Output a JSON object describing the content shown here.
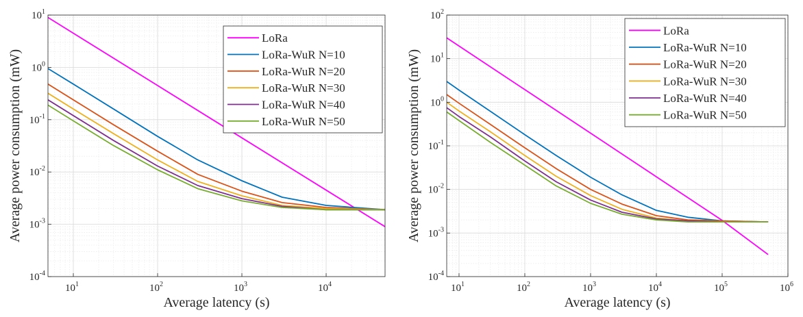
{
  "chart_data": [
    {
      "type": "line",
      "xscale": "log",
      "yscale": "log",
      "xlim": [
        5,
        50000
      ],
      "ylim": [
        0.0001,
        10
      ],
      "grid": true,
      "xlabel": "Average latency (s)",
      "ylabel": "Average power consumption (mW)",
      "legend_position": "top-right",
      "x_ticks": [
        {
          "base": "10",
          "exp": "1"
        },
        {
          "base": "10",
          "exp": "2"
        },
        {
          "base": "10",
          "exp": "3"
        },
        {
          "base": "10",
          "exp": "4"
        }
      ],
      "y_ticks": [
        {
          "base": "10",
          "exp": "-4"
        },
        {
          "base": "10",
          "exp": "-3"
        },
        {
          "base": "10",
          "exp": "-2"
        },
        {
          "base": "10",
          "exp": "-1"
        },
        {
          "base": "10",
          "exp": "0"
        },
        {
          "base": "10",
          "exp": "1"
        }
      ],
      "series": [
        {
          "name": "LoRa",
          "color": "#ff00ff",
          "x": [
            5,
            10,
            100,
            1000,
            10000,
            50000
          ],
          "y": [
            9,
            4.5,
            0.45,
            0.045,
            0.0045,
            0.0009
          ]
        },
        {
          "name": "LoRa-WuR N=10",
          "color": "#0072bd",
          "x": [
            5,
            10,
            30,
            100,
            300,
            1000,
            3000,
            10000,
            50000
          ],
          "y": [
            0.95,
            0.48,
            0.16,
            0.048,
            0.017,
            0.0068,
            0.0033,
            0.0023,
            0.0019
          ]
        },
        {
          "name": "LoRa-WuR N=20",
          "color": "#d95319",
          "x": [
            5,
            10,
            30,
            100,
            300,
            1000,
            3000,
            10000,
            50000
          ],
          "y": [
            0.48,
            0.24,
            0.08,
            0.025,
            0.009,
            0.0043,
            0.0026,
            0.0021,
            0.0019
          ]
        },
        {
          "name": "LoRa-WuR N=30",
          "color": "#edb120",
          "x": [
            5,
            10,
            30,
            100,
            300,
            1000,
            3000,
            10000,
            50000
          ],
          "y": [
            0.32,
            0.16,
            0.054,
            0.017,
            0.0066,
            0.0035,
            0.0023,
            0.002,
            0.0019
          ]
        },
        {
          "name": "LoRa-WuR N=40",
          "color": "#7e2f8e",
          "x": [
            5,
            10,
            30,
            100,
            300,
            1000,
            3000,
            10000,
            50000
          ],
          "y": [
            0.24,
            0.12,
            0.04,
            0.013,
            0.0055,
            0.0031,
            0.0022,
            0.0019,
            0.0019
          ]
        },
        {
          "name": "LoRa-WuR N=50",
          "color": "#77ac30",
          "x": [
            5,
            10,
            30,
            100,
            300,
            1000,
            3000,
            10000,
            50000
          ],
          "y": [
            0.19,
            0.095,
            0.032,
            0.011,
            0.0048,
            0.0028,
            0.0021,
            0.0019,
            0.0019
          ]
        }
      ]
    },
    {
      "type": "line",
      "xscale": "log",
      "yscale": "log",
      "xlim": [
        6.5,
        1000000
      ],
      "ylim": [
        0.0001,
        100
      ],
      "grid": true,
      "xlabel": "Average latency (s)",
      "ylabel": "Average power consumption (mW)",
      "legend_position": "top-right",
      "x_ticks": [
        {
          "base": "10",
          "exp": "1"
        },
        {
          "base": "10",
          "exp": "2"
        },
        {
          "base": "10",
          "exp": "3"
        },
        {
          "base": "10",
          "exp": "4"
        },
        {
          "base": "10",
          "exp": "5"
        },
        {
          "base": "10",
          "exp": "6"
        }
      ],
      "y_ticks": [
        {
          "base": "10",
          "exp": "-4"
        },
        {
          "base": "10",
          "exp": "-3"
        },
        {
          "base": "10",
          "exp": "-2"
        },
        {
          "base": "10",
          "exp": "-1"
        },
        {
          "base": "10",
          "exp": "0"
        },
        {
          "base": "10",
          "exp": "1"
        },
        {
          "base": "10",
          "exp": "2"
        }
      ],
      "series": [
        {
          "name": "LoRa",
          "color": "#ff00ff",
          "x": [
            6.5,
            10,
            100,
            1000,
            10000,
            100000,
            500000
          ],
          "y": [
            30,
            19.5,
            1.95,
            0.195,
            0.0195,
            0.00195,
            0.00032
          ]
        },
        {
          "name": "LoRa-WuR N=10",
          "color": "#0072bd",
          "x": [
            6.5,
            10,
            30,
            100,
            300,
            1000,
            3000,
            10000,
            30000,
            100000,
            500000
          ],
          "y": [
            3,
            1.9,
            0.62,
            0.18,
            0.06,
            0.019,
            0.0075,
            0.0033,
            0.0023,
            0.0019,
            0.0018
          ]
        },
        {
          "name": "LoRa-WuR N=20",
          "color": "#d95319",
          "x": [
            6.5,
            10,
            30,
            100,
            300,
            1000,
            3000,
            10000,
            30000,
            100000,
            500000
          ],
          "y": [
            1.5,
            0.95,
            0.31,
            0.09,
            0.03,
            0.01,
            0.0046,
            0.0025,
            0.002,
            0.0019,
            0.0018
          ]
        },
        {
          "name": "LoRa-WuR N=30",
          "color": "#edb120",
          "x": [
            6.5,
            10,
            30,
            100,
            300,
            1000,
            3000,
            10000,
            30000,
            100000,
            500000
          ],
          "y": [
            1.0,
            0.63,
            0.21,
            0.06,
            0.02,
            0.0072,
            0.0035,
            0.0022,
            0.0019,
            0.0018,
            0.0018
          ]
        },
        {
          "name": "LoRa-WuR N=40",
          "color": "#7e2f8e",
          "x": [
            6.5,
            10,
            30,
            100,
            300,
            1000,
            3000,
            10000,
            30000,
            100000,
            500000
          ],
          "y": [
            0.75,
            0.47,
            0.16,
            0.045,
            0.015,
            0.0057,
            0.003,
            0.0021,
            0.0019,
            0.0018,
            0.0018
          ]
        },
        {
          "name": "LoRa-WuR N=50",
          "color": "#77ac30",
          "x": [
            6.5,
            10,
            30,
            100,
            300,
            1000,
            3000,
            10000,
            30000,
            100000,
            500000
          ],
          "y": [
            0.6,
            0.38,
            0.12,
            0.036,
            0.012,
            0.0048,
            0.0027,
            0.002,
            0.0018,
            0.0018,
            0.0018
          ]
        }
      ]
    }
  ]
}
